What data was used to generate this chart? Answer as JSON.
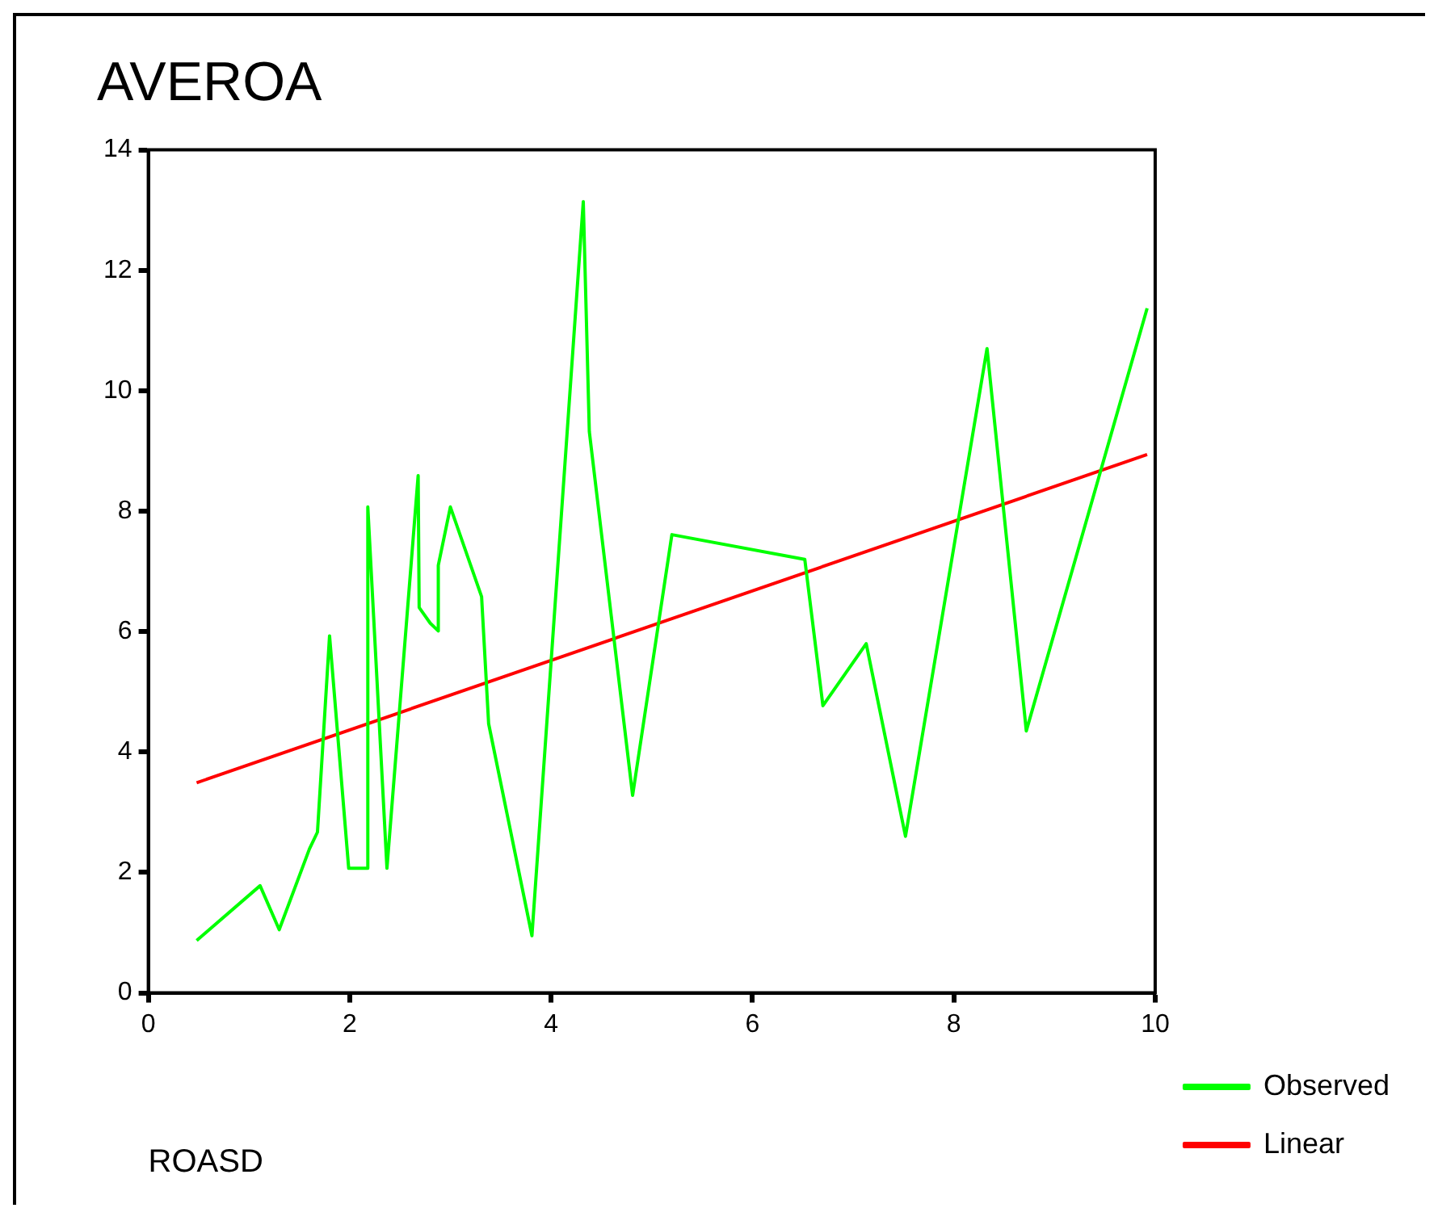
{
  "chart_data": {
    "type": "line",
    "title": "AVEROA",
    "xlabel": "ROASD",
    "xlim": [
      0,
      10
    ],
    "xticks": [
      0,
      2,
      4,
      6,
      8,
      10
    ],
    "ylim": [
      0,
      14
    ],
    "yticks": [
      0,
      2,
      4,
      6,
      8,
      10,
      12,
      14
    ],
    "legend": "right",
    "marker": "none",
    "series": [
      {
        "name": "Observed",
        "color": "#00ff00",
        "x": [
          0.48,
          1.11,
          1.3,
          1.6,
          1.68,
          1.8,
          1.99,
          2.18,
          2.18,
          2.37,
          2.68,
          2.69,
          2.8,
          2.88,
          2.88,
          3.0,
          3.31,
          3.38,
          3.81,
          4.32,
          4.38,
          4.81,
          5.2,
          6.52,
          6.7,
          7.13,
          7.52,
          8.33,
          8.72,
          9.92
        ],
        "values": [
          0.87,
          1.78,
          1.05,
          2.39,
          2.67,
          5.93,
          2.07,
          2.07,
          8.07,
          2.07,
          8.59,
          6.4,
          6.14,
          6.01,
          7.1,
          8.07,
          6.58,
          4.47,
          0.95,
          13.14,
          9.32,
          3.28,
          7.61,
          7.2,
          4.77,
          5.8,
          2.6,
          10.7,
          4.35,
          11.37
        ]
      },
      {
        "name": "Linear",
        "color": "#ff0000",
        "x": [
          0.48,
          9.92
        ],
        "values": [
          3.49,
          8.94
        ]
      }
    ]
  }
}
